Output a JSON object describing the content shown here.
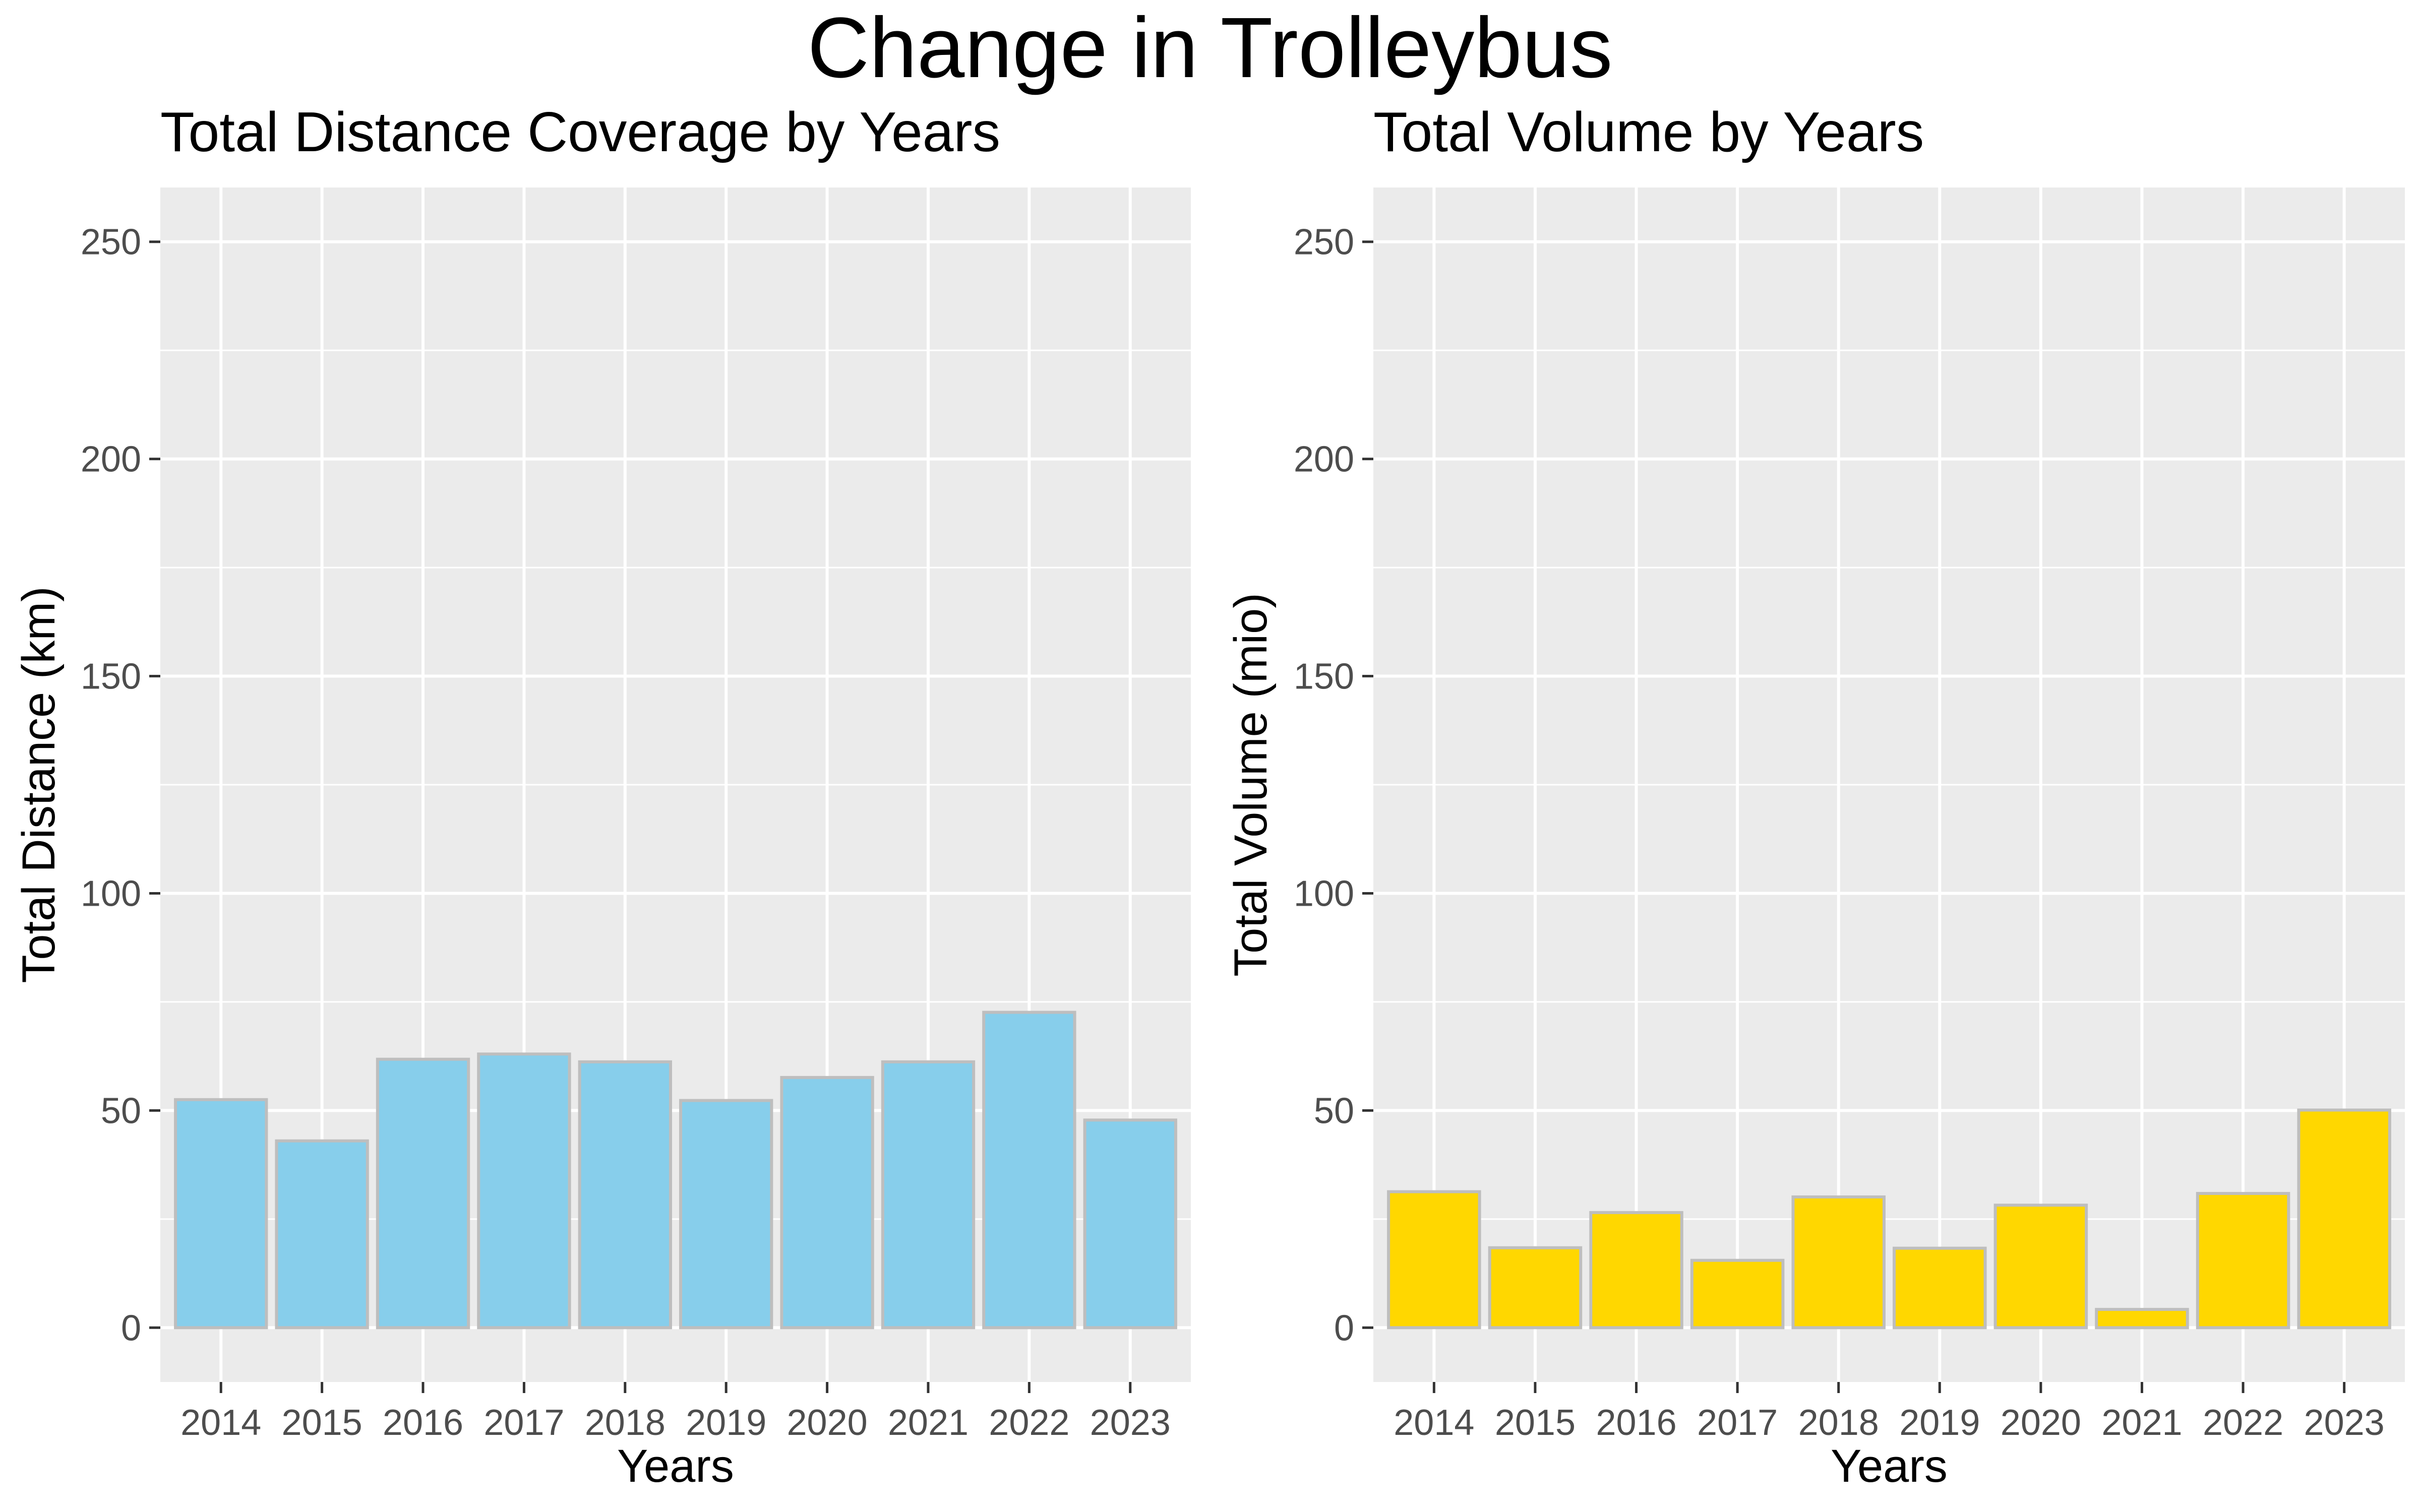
{
  "title": "Change in Trolleybus",
  "chart_data": [
    {
      "type": "bar",
      "title": "Total Distance Coverage by Years",
      "xlabel": "Years",
      "ylabel": "Total Distance (km)",
      "categories": [
        "2014",
        "2015",
        "2016",
        "2017",
        "2018",
        "2019",
        "2020",
        "2021",
        "2022",
        "2023"
      ],
      "values": [
        52.5,
        43,
        61.8,
        63,
        61.2,
        52.3,
        57.6,
        61.2,
        72.6,
        47.8
      ],
      "ylim": [
        0,
        250
      ],
      "yticks": [
        0,
        50,
        100,
        150,
        200,
        250
      ],
      "grid": true,
      "bar_color": "#87CEEB",
      "bar_outline": "#BEBEBE",
      "panel_bg": "#EBEBEB"
    },
    {
      "type": "bar",
      "title": "Total Volume by Years",
      "xlabel": "Years",
      "ylabel": "Total Volume (mio)",
      "categories": [
        "2014",
        "2015",
        "2016",
        "2017",
        "2018",
        "2019",
        "2020",
        "2021",
        "2022",
        "2023"
      ],
      "values": [
        31.3,
        18.4,
        26.5,
        15.5,
        30.1,
        18.3,
        28.2,
        4.2,
        30.9,
        50.1
      ],
      "ylim": [
        0,
        250
      ],
      "yticks": [
        0,
        50,
        100,
        150,
        200,
        250
      ],
      "grid": true,
      "bar_color": "#FFD700",
      "bar_outline": "#BEBEBE",
      "panel_bg": "#EBEBEB"
    }
  ]
}
